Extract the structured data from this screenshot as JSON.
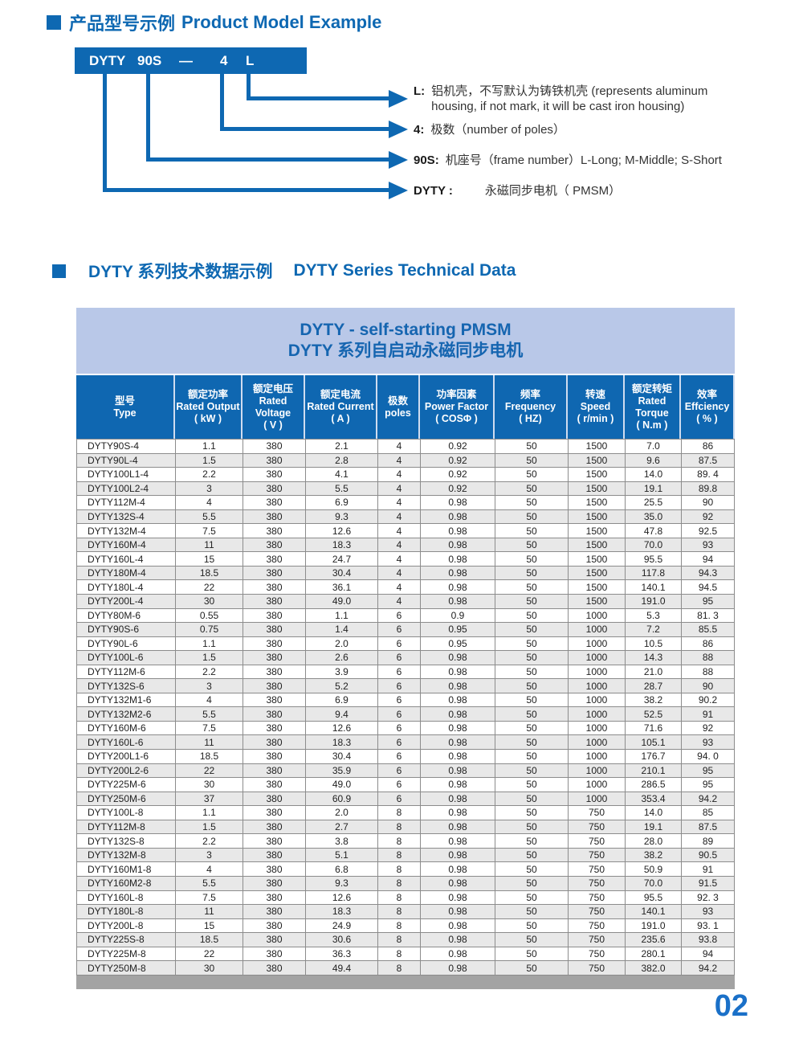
{
  "page": {
    "number": "02"
  },
  "colors": {
    "accent_blue": "#0e68b2",
    "banner_bg": "#b9c8e8",
    "banner_text": "#1565b0",
    "header_bg": "#0f67b1",
    "row_stripe": "#e8e8e8",
    "grid_line": "#8c8c8c",
    "bottom_bar": "#a3a3a3",
    "page_number_blue": "#1a70c8"
  },
  "section1": {
    "title_zh": "产品型号示例",
    "title_en": "Product Model Example",
    "model_box": {
      "parts": [
        "DYTY",
        "90S",
        "—",
        "4",
        "L"
      ]
    },
    "annotations": [
      {
        "label": "L:",
        "text": "铝机壳，不写默认为铸铁机壳 (represents aluminum housing, if not mark, it will be cast iron housing)"
      },
      {
        "label": "4:",
        "text": "极数（number of poles）"
      },
      {
        "label": "90S:",
        "text": "机座号（frame number）L-Long; M-Middle; S-Short"
      },
      {
        "label": "DYTY :",
        "text": "永磁同步电机（ PMSM）"
      }
    ]
  },
  "section2": {
    "title_zh": "DYTY 系列技术数据示例",
    "title_en": "DYTY Series Technical Data",
    "banner": {
      "line1": "DYTY - self-starting PMSM",
      "line2": "DYTY 系列自启动永磁同步电机"
    },
    "columns": [
      {
        "key": "type",
        "zh": "型号",
        "en": "Type",
        "unit": ""
      },
      {
        "key": "rated-output",
        "zh": "额定功率",
        "en": "Rated Output",
        "unit": "( kW )"
      },
      {
        "key": "rated-voltage",
        "zh": "额定电压",
        "en": "Rated Voltage",
        "unit": "( V )"
      },
      {
        "key": "rated-current",
        "zh": "额定电流",
        "en": "Rated Current",
        "unit": "( A )"
      },
      {
        "key": "poles",
        "zh": "极数",
        "en": "poles",
        "unit": ""
      },
      {
        "key": "power-factor",
        "zh": "功率因素",
        "en": "Power Factor",
        "unit": "( COSΦ )"
      },
      {
        "key": "frequency",
        "zh": "频率",
        "en": "Frequency",
        "unit": "( HZ)"
      },
      {
        "key": "speed",
        "zh": "转速",
        "en": "Speed",
        "unit": "( r/min )"
      },
      {
        "key": "rated-torque",
        "zh": "额定转矩",
        "en": "Rated Torque",
        "unit": "( N.m )"
      },
      {
        "key": "efficiency",
        "zh": "效率",
        "en": "Effciency",
        "unit": "( % )"
      }
    ],
    "rows": [
      [
        "DYTY90S-4",
        "1.1",
        "380",
        "2.1",
        "4",
        "0.92",
        "50",
        "1500",
        "7.0",
        "86"
      ],
      [
        "DYTY90L-4",
        "1.5",
        "380",
        "2.8",
        "4",
        "0.92",
        "50",
        "1500",
        "9.6",
        "87.5"
      ],
      [
        "DYTY100L1-4",
        "2.2",
        "380",
        "4.1",
        "4",
        "0.92",
        "50",
        "1500",
        "14.0",
        "89. 4"
      ],
      [
        "DYTY100L2-4",
        "3",
        "380",
        "5.5",
        "4",
        "0.92",
        "50",
        "1500",
        "19.1",
        "89.8"
      ],
      [
        "DYTY112M-4",
        "4",
        "380",
        "6.9",
        "4",
        "0.98",
        "50",
        "1500",
        "25.5",
        "90"
      ],
      [
        "DYTY132S-4",
        "5.5",
        "380",
        "9.3",
        "4",
        "0.98",
        "50",
        "1500",
        "35.0",
        "92"
      ],
      [
        "DYTY132M-4",
        "7.5",
        "380",
        "12.6",
        "4",
        "0.98",
        "50",
        "1500",
        "47.8",
        "92.5"
      ],
      [
        "DYTY160M-4",
        "11",
        "380",
        "18.3",
        "4",
        "0.98",
        "50",
        "1500",
        "70.0",
        "93"
      ],
      [
        "DYTY160L-4",
        "15",
        "380",
        "24.7",
        "4",
        "0.98",
        "50",
        "1500",
        "95.5",
        "94"
      ],
      [
        "DYTY180M-4",
        "18.5",
        "380",
        "30.4",
        "4",
        "0.98",
        "50",
        "1500",
        "117.8",
        "94.3"
      ],
      [
        "DYTY180L-4",
        "22",
        "380",
        "36.1",
        "4",
        "0.98",
        "50",
        "1500",
        "140.1",
        "94.5"
      ],
      [
        "DYTY200L-4",
        "30",
        "380",
        "49.0",
        "4",
        "0.98",
        "50",
        "1500",
        "191.0",
        "95"
      ],
      [
        "DYTY80M-6",
        "0.55",
        "380",
        "1.1",
        "6",
        "0.9",
        "50",
        "1000",
        "5.3",
        "81. 3"
      ],
      [
        "DYTY90S-6",
        "0.75",
        "380",
        "1.4",
        "6",
        "0.95",
        "50",
        "1000",
        "7.2",
        "85.5"
      ],
      [
        "DYTY90L-6",
        "1.1",
        "380",
        "2.0",
        "6",
        "0.95",
        "50",
        "1000",
        "10.5",
        "86"
      ],
      [
        "DYTY100L-6",
        "1.5",
        "380",
        "2.6",
        "6",
        "0.98",
        "50",
        "1000",
        "14.3",
        "88"
      ],
      [
        "DYTY112M-6",
        "2.2",
        "380",
        "3.9",
        "6",
        "0.98",
        "50",
        "1000",
        "21.0",
        "88"
      ],
      [
        "DYTY132S-6",
        "3",
        "380",
        "5.2",
        "6",
        "0.98",
        "50",
        "1000",
        "28.7",
        "90"
      ],
      [
        "DYTY132M1-6",
        "4",
        "380",
        "6.9",
        "6",
        "0.98",
        "50",
        "1000",
        "38.2",
        "90.2"
      ],
      [
        "DYTY132M2-6",
        "5.5",
        "380",
        "9.4",
        "6",
        "0.98",
        "50",
        "1000",
        "52.5",
        "91"
      ],
      [
        "DYTY160M-6",
        "7.5",
        "380",
        "12.6",
        "6",
        "0.98",
        "50",
        "1000",
        "71.6",
        "92"
      ],
      [
        "DYTY160L-6",
        "11",
        "380",
        "18.3",
        "6",
        "0.98",
        "50",
        "1000",
        "105.1",
        "93"
      ],
      [
        "DYTY200L1-6",
        "18.5",
        "380",
        "30.4",
        "6",
        "0.98",
        "50",
        "1000",
        "176.7",
        "94. 0"
      ],
      [
        "DYTY200L2-6",
        "22",
        "380",
        "35.9",
        "6",
        "0.98",
        "50",
        "1000",
        "210.1",
        "95"
      ],
      [
        "DYTY225M-6",
        "30",
        "380",
        "49.0",
        "6",
        "0.98",
        "50",
        "1000",
        "286.5",
        "95"
      ],
      [
        "DYTY250M-6",
        "37",
        "380",
        "60.9",
        "6",
        "0.98",
        "50",
        "1000",
        "353.4",
        "94.2"
      ],
      [
        "DYTY100L-8",
        "1.1",
        "380",
        "2.0",
        "8",
        "0.98",
        "50",
        "750",
        "14.0",
        "85"
      ],
      [
        "DYTY112M-8",
        "1.5",
        "380",
        "2.7",
        "8",
        "0.98",
        "50",
        "750",
        "19.1",
        "87.5"
      ],
      [
        "DYTY132S-8",
        "2.2",
        "380",
        "3.8",
        "8",
        "0.98",
        "50",
        "750",
        "28.0",
        "89"
      ],
      [
        "DYTY132M-8",
        "3",
        "380",
        "5.1",
        "8",
        "0.98",
        "50",
        "750",
        "38.2",
        "90.5"
      ],
      [
        "DYTY160M1-8",
        "4",
        "380",
        "6.8",
        "8",
        "0.98",
        "50",
        "750",
        "50.9",
        "91"
      ],
      [
        "DYTY160M2-8",
        "5.5",
        "380",
        "9.3",
        "8",
        "0.98",
        "50",
        "750",
        "70.0",
        "91.5"
      ],
      [
        "DYTY160L-8",
        "7.5",
        "380",
        "12.6",
        "8",
        "0.98",
        "50",
        "750",
        "95.5",
        "92. 3"
      ],
      [
        "DYTY180L-8",
        "11",
        "380",
        "18.3",
        "8",
        "0.98",
        "50",
        "750",
        "140.1",
        "93"
      ],
      [
        "DYTY200L-8",
        "15",
        "380",
        "24.9",
        "8",
        "0.98",
        "50",
        "750",
        "191.0",
        "93. 1"
      ],
      [
        "DYTY225S-8",
        "18.5",
        "380",
        "30.6",
        "8",
        "0.98",
        "50",
        "750",
        "235.6",
        "93.8"
      ],
      [
        "DYTY225M-8",
        "22",
        "380",
        "36.3",
        "8",
        "0.98",
        "50",
        "750",
        "280.1",
        "94"
      ],
      [
        "DYTY250M-8",
        "30",
        "380",
        "49.4",
        "8",
        "0.98",
        "50",
        "750",
        "382.0",
        "94.2"
      ]
    ]
  }
}
